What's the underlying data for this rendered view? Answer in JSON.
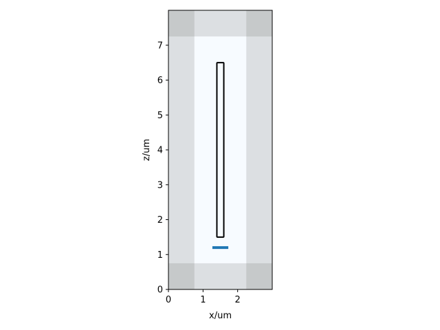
{
  "chart_data": {
    "type": "simulation-layout",
    "xlabel": "x/um",
    "ylabel": "z/um",
    "xlim": [
      0,
      3.0
    ],
    "ylim": [
      0,
      8.0
    ],
    "x_ticks": [
      0,
      1,
      2
    ],
    "y_ticks": [
      0,
      1,
      2,
      3,
      4,
      5,
      6,
      7
    ],
    "regions": [
      {
        "name": "background",
        "x": [
          0,
          3.0
        ],
        "z": [
          0,
          8.0
        ],
        "color": "#dcdfe2"
      },
      {
        "name": "pml-left-bottom",
        "x": [
          0,
          0.75
        ],
        "z": [
          0,
          0.75
        ],
        "color": "#c6c9ca"
      },
      {
        "name": "pml-right-bottom",
        "x": [
          2.25,
          3.0
        ],
        "z": [
          0,
          0.75
        ],
        "color": "#c6c9ca"
      },
      {
        "name": "pml-left-top",
        "x": [
          0,
          0.75
        ],
        "z": [
          7.25,
          8.0
        ],
        "color": "#c6c9ca"
      },
      {
        "name": "pml-right-top",
        "x": [
          2.25,
          3.0
        ],
        "z": [
          7.25,
          8.0
        ],
        "color": "#c6c9ca"
      },
      {
        "name": "simulation-interior",
        "x": [
          0.75,
          2.25
        ],
        "z": [
          0.75,
          7.25
        ],
        "color": "#f7fbff"
      }
    ],
    "structures": [
      {
        "name": "waveguide",
        "x": [
          1.4,
          1.6
        ],
        "z": [
          1.5,
          6.5
        ],
        "stroke": "#000000"
      }
    ],
    "sources": [
      {
        "name": "source",
        "x": [
          1.27,
          1.73
        ],
        "z": 1.2,
        "color": "#1f77b4"
      }
    ]
  }
}
